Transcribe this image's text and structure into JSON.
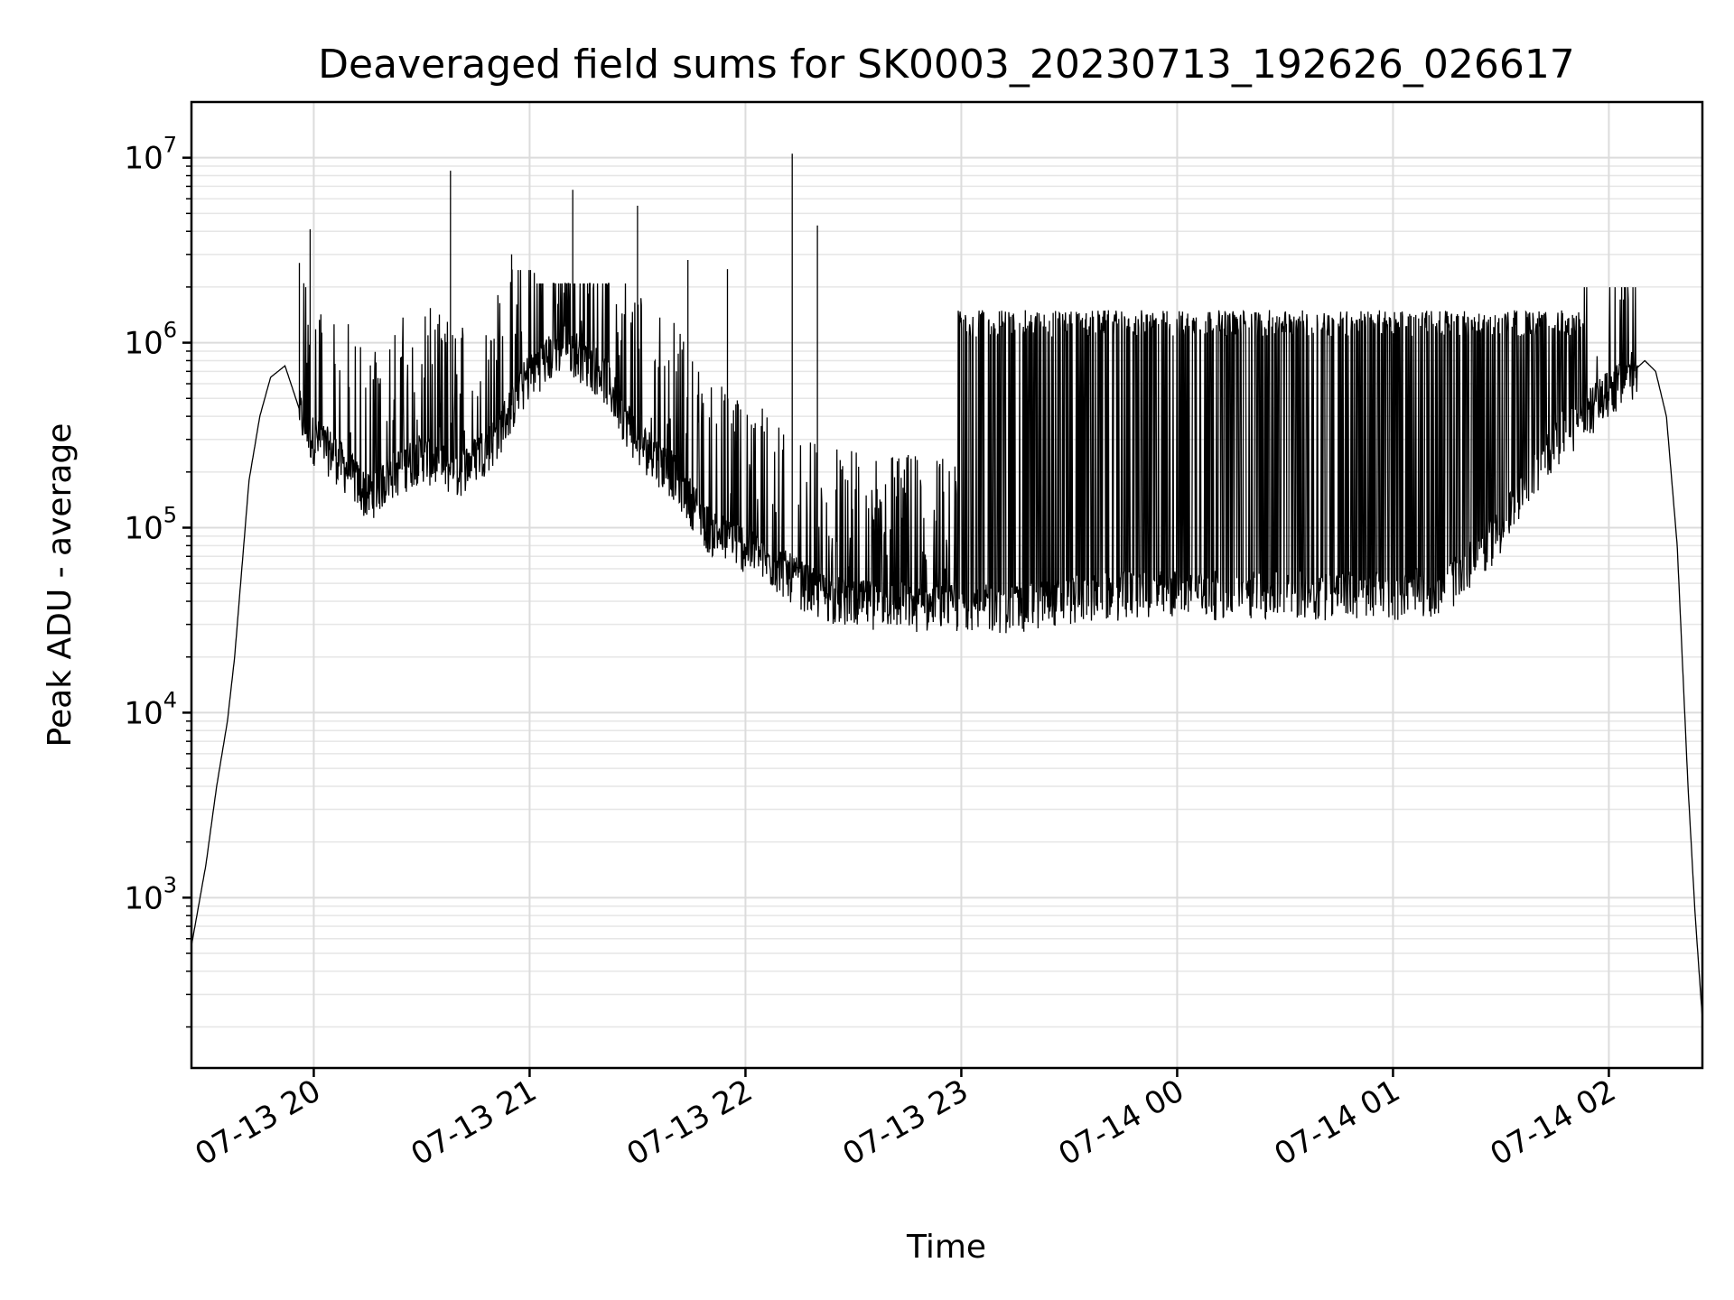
{
  "chart_data": {
    "type": "line",
    "title": "Deaveraged field sums for SK0003_20230713_192626_026617",
    "xlabel": "Time",
    "ylabel": "Peak ADU - average",
    "yscale": "log",
    "ylim": [
      120,
      20000000
    ],
    "xlim": [
      "2023-07-13 19:26",
      "2023-07-14 02:26"
    ],
    "x_ticks": [
      {
        "t": "2023-07-13 20:00",
        "label": "07-13 20"
      },
      {
        "t": "2023-07-13 21:00",
        "label": "07-13 21"
      },
      {
        "t": "2023-07-13 22:00",
        "label": "07-13 22"
      },
      {
        "t": "2023-07-13 23:00",
        "label": "07-13 23"
      },
      {
        "t": "2023-07-14 00:00",
        "label": "07-14 00"
      },
      {
        "t": "2023-07-14 01:00",
        "label": "07-14 01"
      },
      {
        "t": "2023-07-14 02:00",
        "label": "07-14 02"
      }
    ],
    "y_ticks": [
      {
        "value": 1000,
        "base": "10",
        "exp": "3"
      },
      {
        "value": 10000,
        "base": "10",
        "exp": "4"
      },
      {
        "value": 100000,
        "base": "10",
        "exp": "5"
      },
      {
        "value": 1000000,
        "base": "10",
        "exp": "6"
      },
      {
        "value": 10000000,
        "base": "10",
        "exp": "7"
      }
    ],
    "grid": true,
    "line_color": "#000000",
    "series": [
      {
        "x": [
          "2023-07-13 19:26",
          "2023-07-13 19:30",
          "2023-07-13 19:33",
          "2023-07-13 19:36",
          "2023-07-13 19:38",
          "2023-07-13 19:40",
          "2023-07-13 19:42",
          "2023-07-13 19:45",
          "2023-07-13 19:48",
          "2023-07-13 19:52",
          "2023-07-13 19:55",
          "2023-07-13 19:58",
          "2023-07-13 20:05",
          "2023-07-13 20:10",
          "2023-07-13 20:15",
          "2023-07-13 20:22",
          "2023-07-13 20:30",
          "2023-07-13 20:40",
          "2023-07-13 20:50",
          "2023-07-13 21:00",
          "2023-07-13 21:10",
          "2023-07-13 21:20",
          "2023-07-13 21:30",
          "2023-07-13 21:40",
          "2023-07-13 21:50",
          "2023-07-13 22:00",
          "2023-07-13 22:10",
          "2023-07-13 22:20",
          "2023-07-13 22:30",
          "2023-07-13 22:40",
          "2023-07-13 22:50",
          "2023-07-13 23:00",
          "2023-07-13 23:15",
          "2023-07-13 23:30",
          "2023-07-13 23:45",
          "2023-07-14 00:00",
          "2023-07-14 00:15",
          "2023-07-14 00:30",
          "2023-07-14 00:45",
          "2023-07-14 01:00",
          "2023-07-14 01:15",
          "2023-07-14 01:30",
          "2023-07-14 01:45",
          "2023-07-14 02:00",
          "2023-07-14 02:05",
          "2023-07-14 02:10",
          "2023-07-14 02:13",
          "2023-07-14 02:16",
          "2023-07-14 02:19",
          "2023-07-14 02:22",
          "2023-07-14 02:24",
          "2023-07-14 02:26"
        ],
        "y": [
          550,
          1500,
          4000,
          9000,
          20000,
          60000,
          180000,
          400000,
          650000,
          750000,
          500000,
          330000,
          260000,
          200000,
          150000,
          200000,
          250000,
          200000,
          300000,
          700000,
          1000000,
          700000,
          300000,
          200000,
          100000,
          80000,
          60000,
          45000,
          40000,
          40000,
          38000,
          38000,
          38000,
          42000,
          45000,
          45000,
          45000,
          45000,
          45000,
          45000,
          48000,
          100000,
          300000,
          550000,
          650000,
          800000,
          700000,
          400000,
          80000,
          4000,
          800,
          220
        ],
        "spikes": [
          {
            "t": "2023-07-13 19:56",
            "v": 2700000
          },
          {
            "t": "2023-07-13 19:59",
            "v": 4100000
          },
          {
            "t": "2023-07-13 20:38",
            "v": 8500000
          },
          {
            "t": "2023-07-13 20:55",
            "v": 3000000
          },
          {
            "t": "2023-07-13 21:12",
            "v": 6700000
          },
          {
            "t": "2023-07-13 21:30",
            "v": 5500000
          },
          {
            "t": "2023-07-13 21:44",
            "v": 2800000
          },
          {
            "t": "2023-07-13 21:55",
            "v": 2500000
          },
          {
            "t": "2023-07-13 22:13",
            "v": 10500000
          },
          {
            "t": "2023-07-13 22:20",
            "v": 4300000
          }
        ]
      }
    ]
  }
}
